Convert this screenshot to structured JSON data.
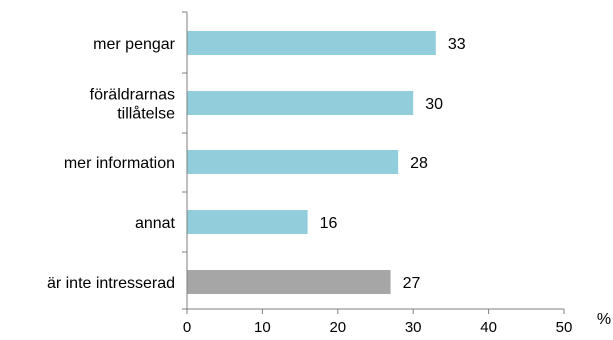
{
  "chart_data": {
    "type": "bar",
    "orientation": "horizontal",
    "categories": [
      [
        "mer pengar"
      ],
      [
        "föräldrarnas",
        "tillåtelse"
      ],
      [
        "mer information"
      ],
      [
        "annat"
      ],
      [
        "är inte intresserad"
      ]
    ],
    "values": [
      33,
      30,
      28,
      16,
      27
    ],
    "bar_colors": [
      "#92cddc",
      "#92cddc",
      "#92cddc",
      "#92cddc",
      "#a6a6a6"
    ],
    "xlim": [
      0,
      50
    ],
    "xticks": [
      0,
      10,
      20,
      30,
      40,
      50
    ],
    "unit_label": "%",
    "grid": false,
    "legend": "none"
  }
}
